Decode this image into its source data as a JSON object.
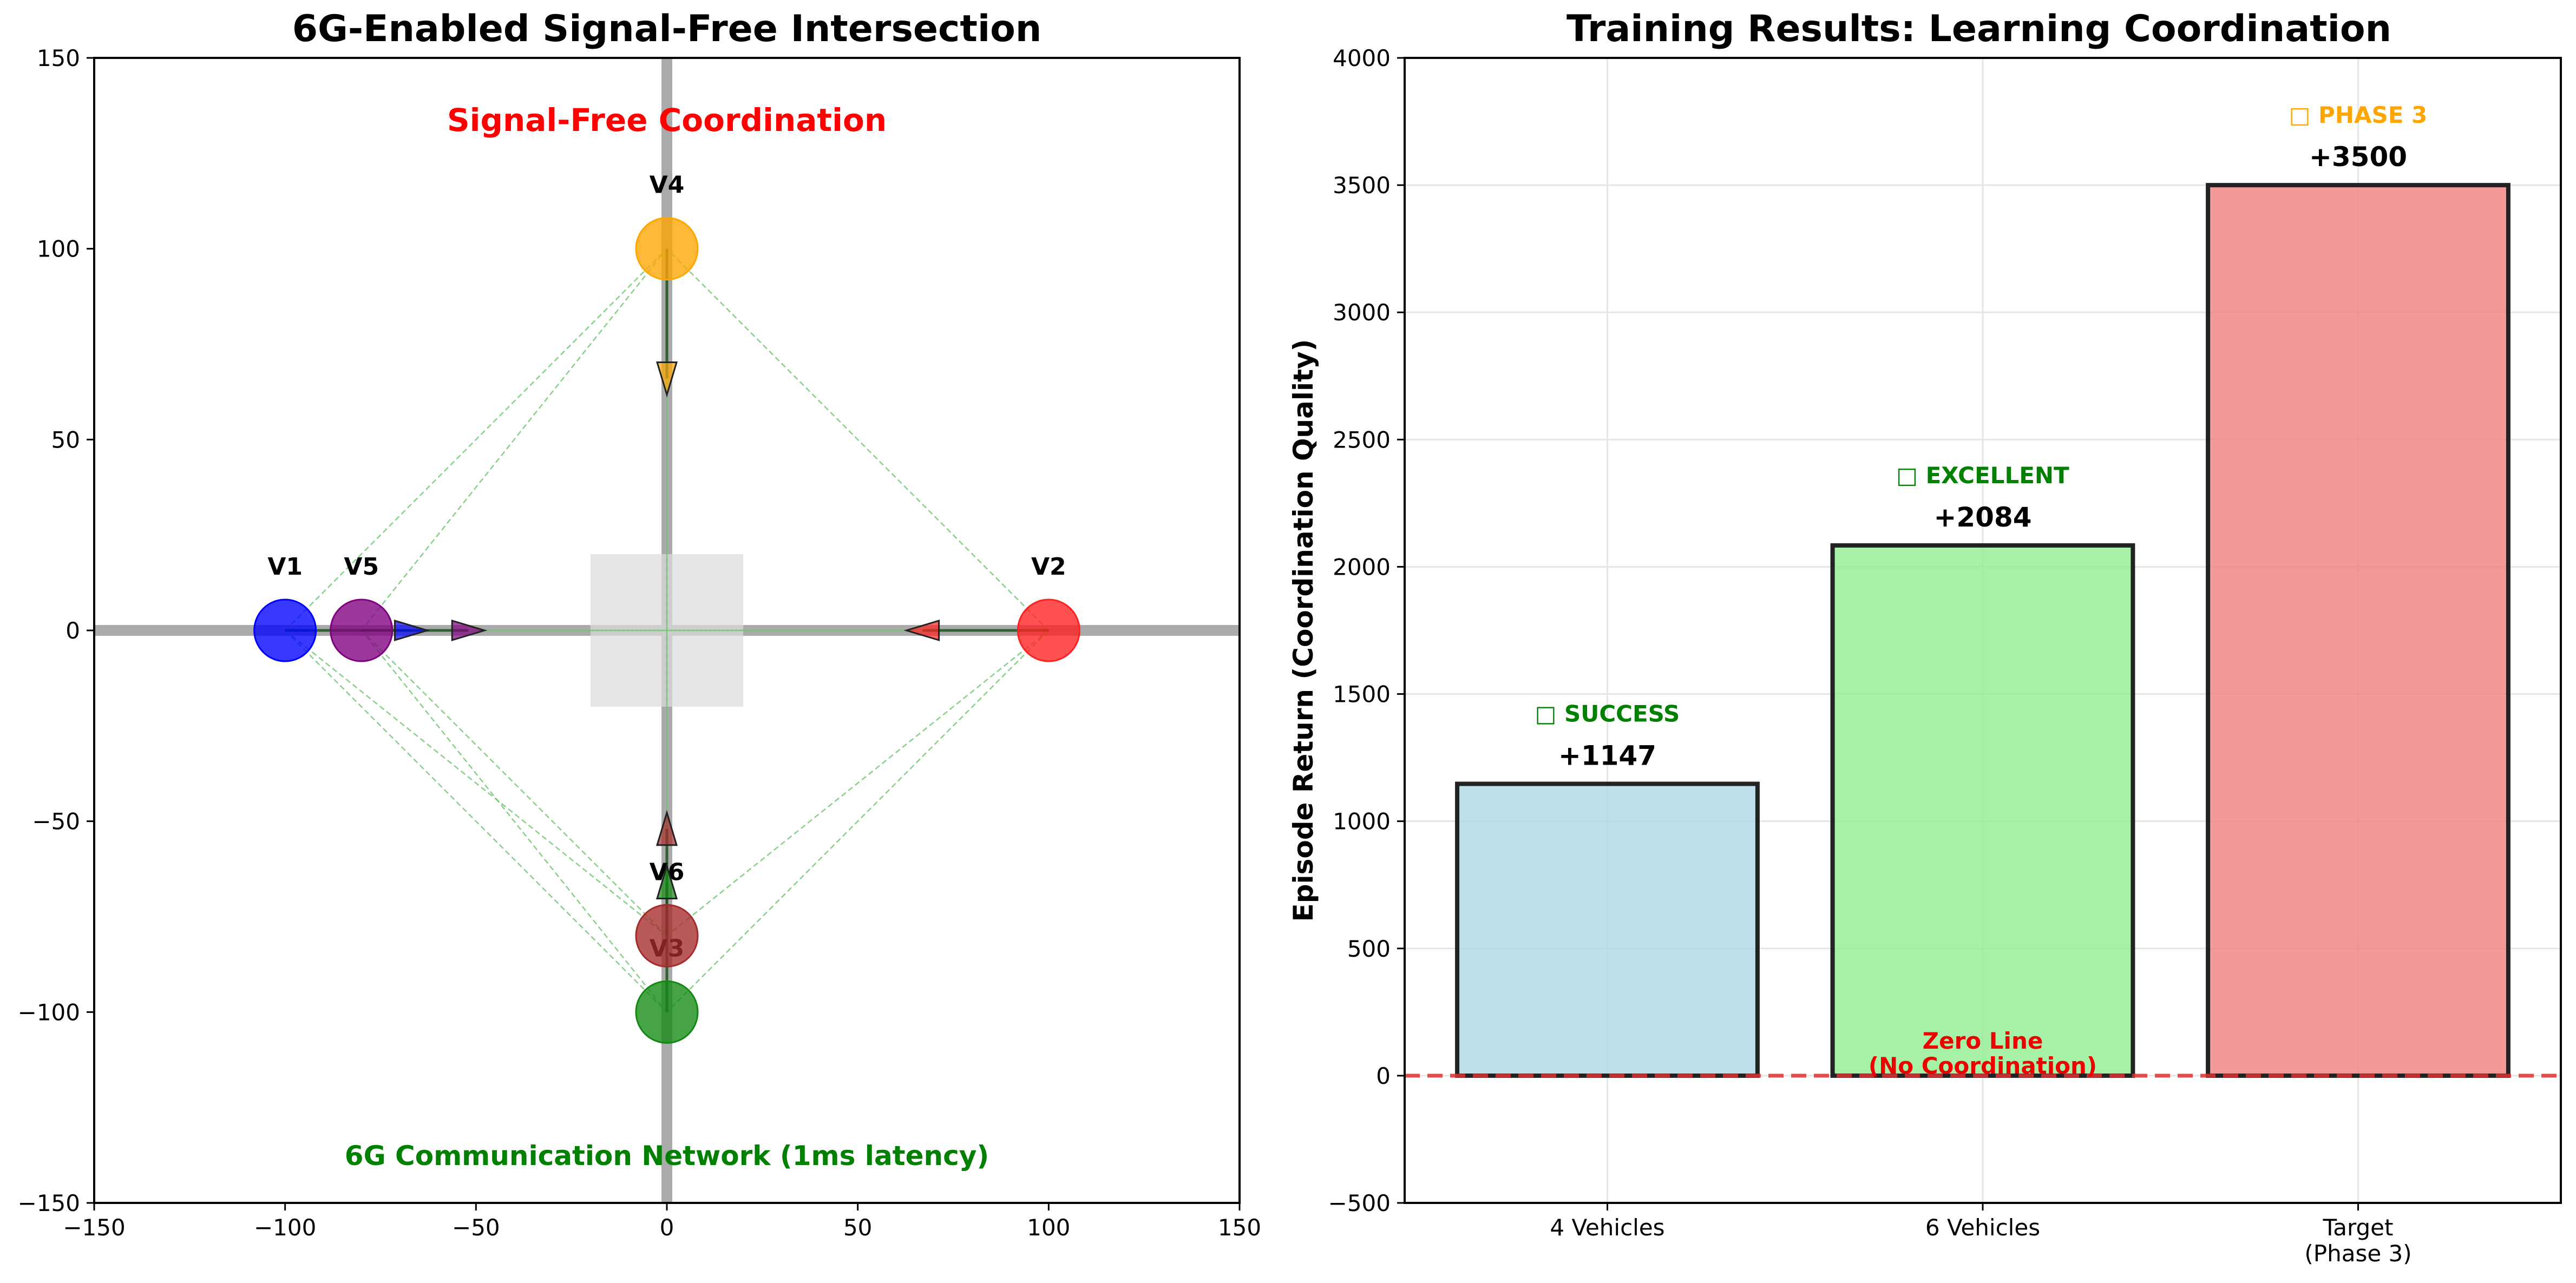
{
  "colors": {
    "road": "#aaaaaa",
    "intersection_box": "#dcdcdc",
    "comm_link": "#6cc46c",
    "zero_line": "#e03030",
    "grid": "#e6e6e6"
  },
  "chart_data": [
    {
      "type": "scatter",
      "title": "6G-Enabled Signal-Free Intersection",
      "xlim": [
        -150,
        150
      ],
      "ylim": [
        -150,
        150
      ],
      "xticks": [
        -150,
        -100,
        -50,
        0,
        50,
        100,
        150
      ],
      "yticks": [
        -150,
        -100,
        -50,
        0,
        50,
        100,
        150
      ],
      "xtick_labels": [
        "−150",
        "−100",
        "−50",
        "0",
        "50",
        "100",
        "150"
      ],
      "ytick_labels": [
        "−150",
        "−100",
        "−50",
        "0",
        "50",
        "100",
        "150"
      ],
      "grid": false,
      "annotations": {
        "top": "Signal-Free Coordination",
        "bottom": "6G Communication Network (1ms latency)"
      },
      "roads": {
        "horizontal_y": 0,
        "vertical_x": 0
      },
      "intersection_zone": {
        "x": [
          -20,
          20
        ],
        "y": [
          -20,
          20
        ]
      },
      "vehicles": [
        {
          "label": "V1",
          "x": -100,
          "y": 0,
          "color": "#0000ff",
          "arrow": {
            "x": -67,
            "y": 0,
            "dir": "right"
          }
        },
        {
          "label": "V2",
          "x": 100,
          "y": 0,
          "color": "#ff2020",
          "arrow": {
            "x": 67,
            "y": 0,
            "dir": "left"
          }
        },
        {
          "label": "V3",
          "x": 0,
          "y": -100,
          "color": "#128a12",
          "arrow": {
            "x": 0,
            "y": -66,
            "dir": "up"
          }
        },
        {
          "label": "V4",
          "x": 0,
          "y": 100,
          "color": "#ffa500",
          "arrow": {
            "x": 0,
            "y": 66,
            "dir": "down"
          }
        },
        {
          "label": "V5",
          "x": -80,
          "y": 0,
          "color": "#800080",
          "arrow": {
            "x": -52,
            "y": 0,
            "dir": "right"
          }
        },
        {
          "label": "V6",
          "x": 0,
          "y": -80,
          "color": "#a52a2a",
          "arrow": {
            "x": 0,
            "y": -52,
            "dir": "up"
          }
        }
      ]
    },
    {
      "type": "bar",
      "title": "Training Results: Learning Coordination",
      "ylabel": "Episode Return (Coordination Quality)",
      "categories": [
        "4 Vehicles",
        "6 Vehicles",
        "Target\n(Phase 3)"
      ],
      "values": [
        1147,
        2084,
        3500
      ],
      "value_labels": [
        "+1147",
        "+2084",
        "+3500"
      ],
      "status_labels": [
        "□ SUCCESS",
        "□ EXCELLENT",
        "□ PHASE 3"
      ],
      "status_colors": [
        "#008000",
        "#008000",
        "#ffa500"
      ],
      "bar_colors": [
        "#add8e6",
        "#90ee90",
        "#f08080"
      ],
      "ylim": [
        -500,
        4000
      ],
      "yticks": [
        -500,
        0,
        500,
        1000,
        1500,
        2000,
        2500,
        3000,
        3500,
        4000
      ],
      "ytick_labels": [
        "−500",
        "0",
        "500",
        "1000",
        "1500",
        "2000",
        "2500",
        "3000",
        "3500",
        "4000"
      ],
      "grid": true,
      "zero_line_label": "Zero Line\n(No Coordination)"
    }
  ]
}
